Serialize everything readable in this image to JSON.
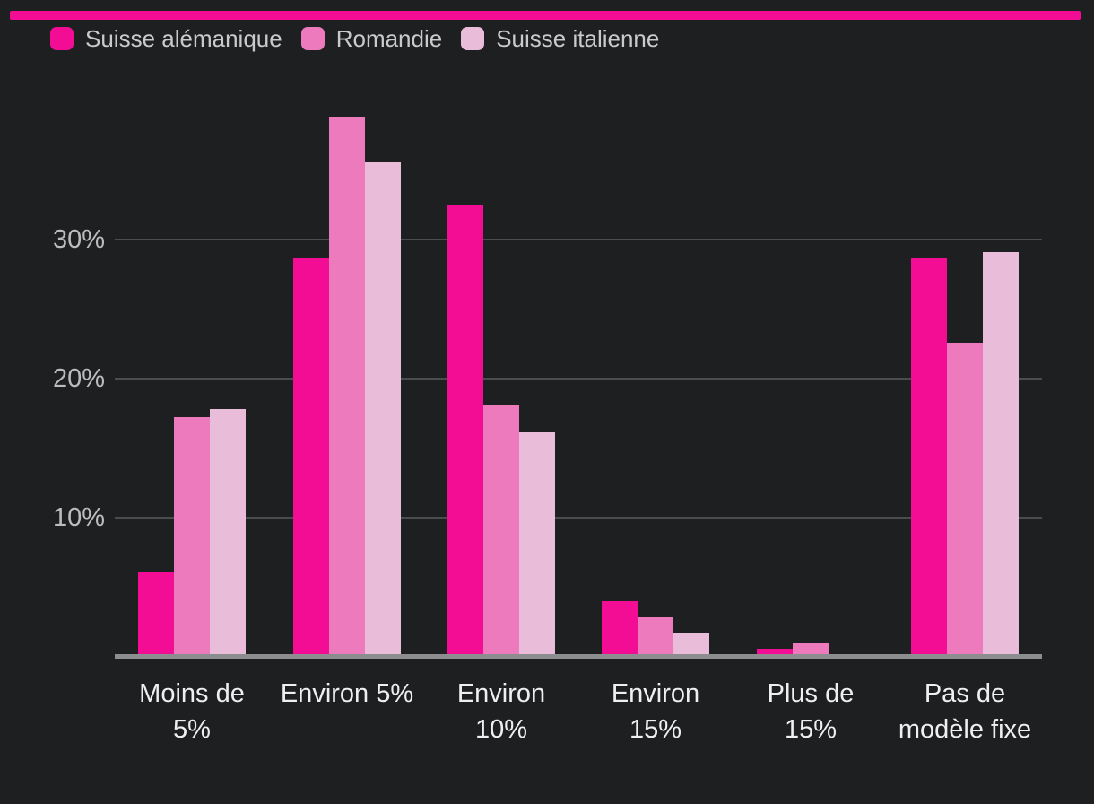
{
  "banner": {
    "color": "#f20d94"
  },
  "colors": {
    "background": "#1e1f21",
    "gridline": "#4b4c4e",
    "axis_line": "#8c8d8f",
    "y_tick_label": "#bbbcbe",
    "x_category_label": "#efeff0",
    "legend_text": "#c9cacc"
  },
  "chart_data": {
    "type": "bar",
    "title": "",
    "xlabel": "",
    "ylabel": "",
    "grid": true,
    "legend_position": "top-left",
    "ylim": [
      0,
      40
    ],
    "y_ticks": [
      {
        "label": "10%",
        "value": 10
      },
      {
        "label": "20%",
        "value": 20
      },
      {
        "label": "30%",
        "value": 30
      }
    ],
    "categories": [
      [
        "Moins de",
        "5%"
      ],
      [
        "Environ 5%"
      ],
      [
        "Environ",
        "10%"
      ],
      [
        "Environ",
        "15%"
      ],
      [
        "Plus de",
        "15%"
      ],
      [
        "Pas de",
        "modèle fixe"
      ]
    ],
    "series": [
      {
        "name": "Suisse alémanique",
        "color": "#f20d94",
        "values": [
          6.0,
          28.6,
          32.3,
          3.9,
          0.5,
          28.6
        ]
      },
      {
        "name": "Romandie",
        "color": "#ed7abc",
        "values": [
          17.1,
          38.7,
          18.0,
          2.8,
          0.9,
          22.5
        ]
      },
      {
        "name": "Suisse italienne",
        "color": "#e9bcd9",
        "values": [
          17.7,
          35.5,
          16.1,
          1.7,
          0,
          29.0
        ]
      }
    ]
  }
}
